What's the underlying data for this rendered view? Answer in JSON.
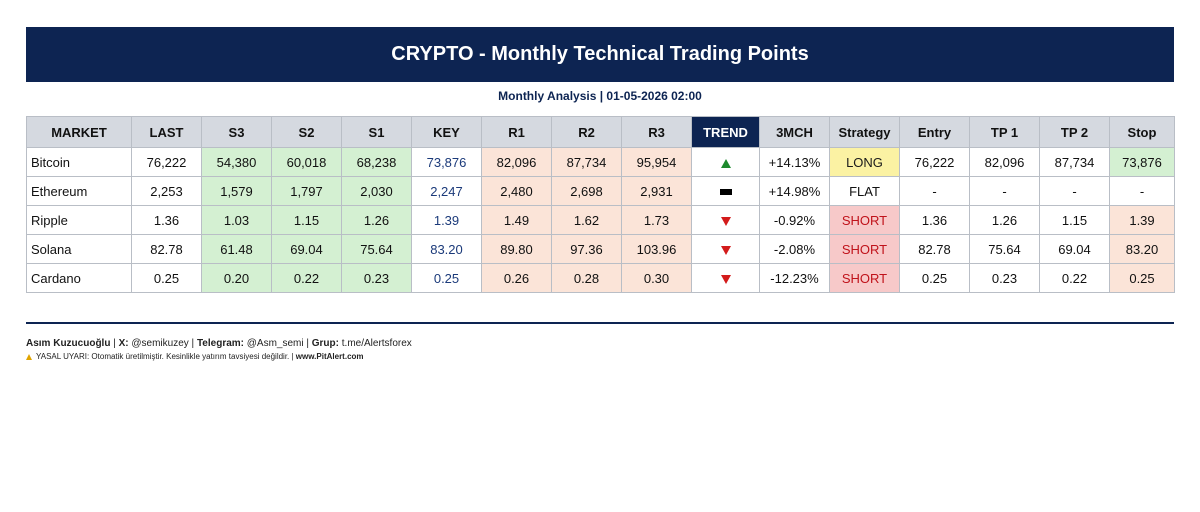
{
  "header": {
    "title": "CRYPTO - Monthly Technical Trading Points",
    "subtitle": "Monthly Analysis | 01-05-2026 02:00"
  },
  "columns": [
    "MARKET",
    "LAST",
    "S3",
    "S2",
    "S1",
    "KEY",
    "R1",
    "R2",
    "R3",
    "TREND",
    "3MCH",
    "Strategy",
    "Entry",
    "TP 1",
    "TP 2",
    "Stop"
  ],
  "rows": [
    {
      "market": "Bitcoin",
      "last": "76,222",
      "s3": "54,380",
      "s2": "60,018",
      "s1": "68,238",
      "key": "73,876",
      "r1": "82,096",
      "r2": "87,734",
      "r3": "95,954",
      "trend": "up",
      "mch": "+14.13%",
      "strategy": "LONG",
      "entry": "76,222",
      "tp1": "82,096",
      "tp2": "87,734",
      "stop": "73,876"
    },
    {
      "market": "Ethereum",
      "last": "2,253",
      "s3": "1,579",
      "s2": "1,797",
      "s1": "2,030",
      "key": "2,247",
      "r1": "2,480",
      "r2": "2,698",
      "r3": "2,931",
      "trend": "flat",
      "mch": "+14.98%",
      "strategy": "FLAT",
      "entry": "-",
      "tp1": "-",
      "tp2": "-",
      "stop": "-"
    },
    {
      "market": "Ripple",
      "last": "1.36",
      "s3": "1.03",
      "s2": "1.15",
      "s1": "1.26",
      "key": "1.39",
      "r1": "1.49",
      "r2": "1.62",
      "r3": "1.73",
      "trend": "down",
      "mch": "-0.92%",
      "strategy": "SHORT",
      "entry": "1.36",
      "tp1": "1.26",
      "tp2": "1.15",
      "stop": "1.39"
    },
    {
      "market": "Solana",
      "last": "82.78",
      "s3": "61.48",
      "s2": "69.04",
      "s1": "75.64",
      "key": "83.20",
      "r1": "89.80",
      "r2": "97.36",
      "r3": "103.96",
      "trend": "down",
      "mch": "-2.08%",
      "strategy": "SHORT",
      "entry": "82.78",
      "tp1": "75.64",
      "tp2": "69.04",
      "stop": "83.20"
    },
    {
      "market": "Cardano",
      "last": "0.25",
      "s3": "0.20",
      "s2": "0.22",
      "s1": "0.23",
      "key": "0.25",
      "r1": "0.26",
      "r2": "0.28",
      "r3": "0.30",
      "trend": "down",
      "mch": "-12.23%",
      "strategy": "SHORT",
      "entry": "0.25",
      "tp1": "0.23",
      "tp2": "0.22",
      "stop": "0.25"
    }
  ],
  "footer": {
    "author_label": "Asım Kuzucuoğlu",
    "x_label": "X:",
    "x_handle": "@semikuzey",
    "telegram_label": "Telegram:",
    "telegram_handle": "@Asm_semi",
    "group_label": "Grup:",
    "group_link": "t.me/Alertsforex",
    "disclaimer": "YASAL UYARI: Otomatik üretilmiştir. Kesinlikle yatırım tavsiyesi değildir. |",
    "site": "www.PitAlert.com"
  },
  "colors": {
    "header_bg": "#0d2452",
    "support_bg": "#d4f0d2",
    "resistance_bg": "#fbe4d8",
    "long_bg": "#fbf2a3",
    "short_bg": "#f7c9c9",
    "up_arrow": "#1e8a2e",
    "down_arrow": "#d31b1b"
  }
}
